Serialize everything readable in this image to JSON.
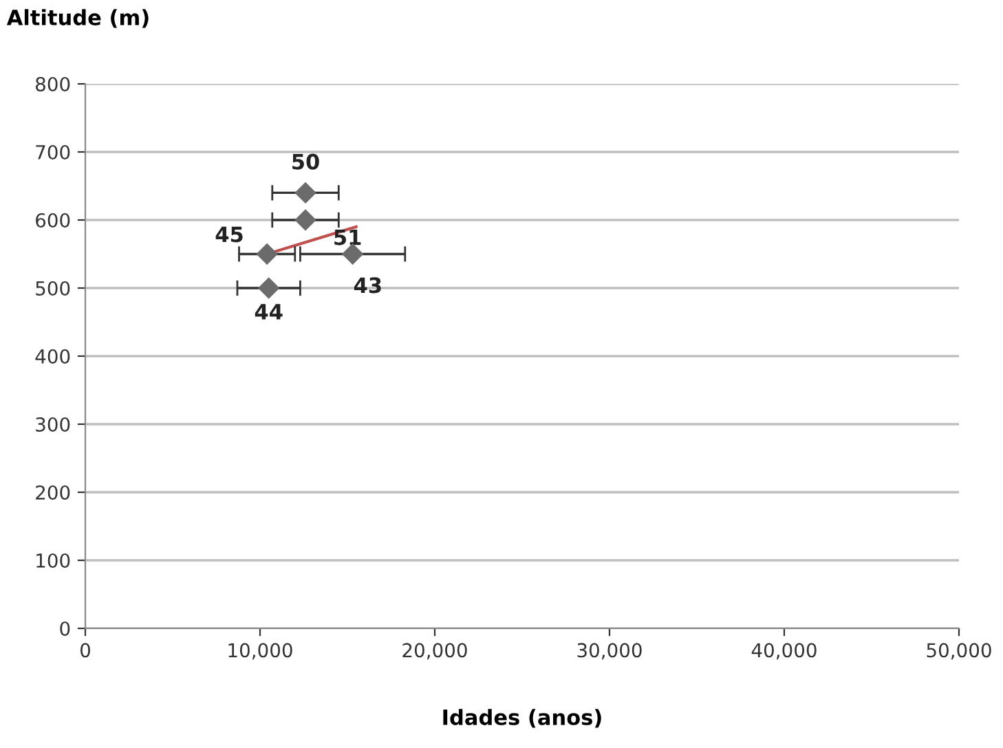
{
  "chart_data": {
    "type": "scatter",
    "xlabel": "Idades (anos)",
    "ylabel": "Altitude (m)",
    "xlim": [
      0,
      50000
    ],
    "xticks": [
      0,
      {
        "value": 10000,
        "label": "10,000"
      },
      {
        "value": 20000,
        "label": "20,000"
      },
      {
        "value": 30000,
        "label": "30,000"
      },
      {
        "value": 40000,
        "label": "40,000"
      },
      {
        "value": 50000,
        "label": "50,000"
      }
    ],
    "ylim": [
      0,
      800
    ],
    "yticks": [
      0,
      100,
      200,
      300,
      400,
      500,
      600,
      700,
      800
    ],
    "grid": "y",
    "legend": false,
    "series": [
      {
        "marker": "diamond",
        "color": "#6b6b6b",
        "x": [
          12600,
          12600,
          10400,
          15300,
          10500
        ],
        "values": [
          640,
          600,
          550,
          550,
          500
        ],
        "xerrors": [
          1900,
          1900,
          1600,
          3000,
          1800
        ]
      },
      {
        "type": "line",
        "color": "#c0504d",
        "x": [
          10400,
          15500
        ],
        "values": [
          550,
          590
        ]
      }
    ],
    "annotations": [
      {
        "text": "50",
        "x": 12600,
        "y": 640
      },
      {
        "text": "51",
        "x": 12600,
        "y": 600
      },
      {
        "text": "45",
        "x": 10400,
        "y": 550
      },
      {
        "text": "43",
        "x": 15300,
        "y": 550
      },
      {
        "text": "44",
        "x": 10500,
        "y": 500
      }
    ]
  }
}
